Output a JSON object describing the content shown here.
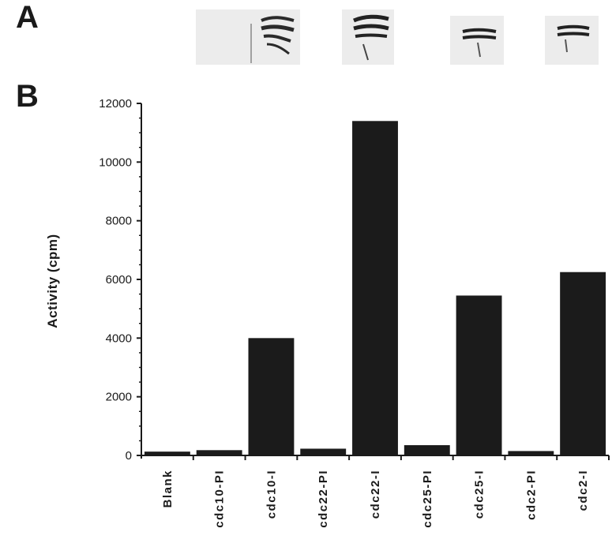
{
  "panels": {
    "a": "A",
    "b": "B"
  },
  "colors": {
    "bar": "#1b1b1b",
    "axis": "#1a1a1a",
    "gel_bg": "#ececec",
    "band": "#2a2a2a"
  },
  "chart_data": {
    "type": "bar",
    "title": "",
    "xlabel": "",
    "ylabel": "Activity  (cpm)",
    "ylim": [
      0,
      12000
    ],
    "yticks": [
      "0",
      "2000",
      "4000",
      "6000",
      "8000",
      "10000",
      "12000"
    ],
    "categories": [
      "Blank",
      "cdc10-PI",
      "cdc10-I",
      "cdc22-PI",
      "cdc22-I",
      "cdc25-PI",
      "cdc25-I",
      "cdc2-PI",
      "cdc2-I"
    ],
    "values": [
      130,
      180,
      4000,
      230,
      11400,
      350,
      5450,
      150,
      6250
    ]
  }
}
